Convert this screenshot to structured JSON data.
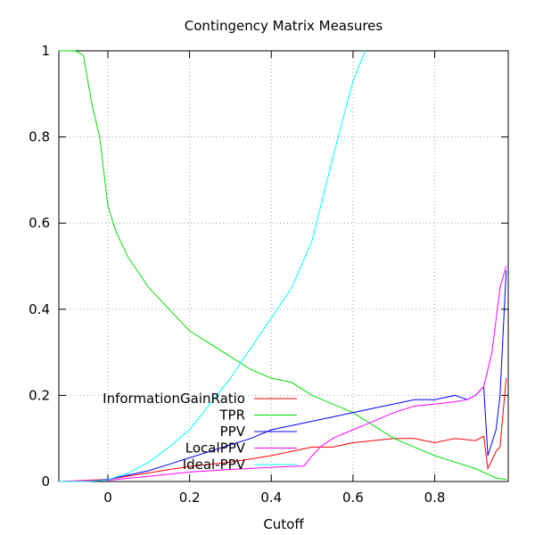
{
  "chart_data": {
    "type": "line",
    "title": "Contingency Matrix Measures",
    "xlabel": "Cutoff",
    "ylabel": "",
    "xlim": [
      -0.12,
      0.98
    ],
    "ylim": [
      0,
      1
    ],
    "grid": true,
    "legend_position": "bottom-left",
    "x_ticks": [
      0,
      0.2,
      0.4,
      0.6,
      0.8
    ],
    "x_tick_labels": [
      "0",
      "0.2",
      "0.4",
      "0.6",
      "0.8"
    ],
    "y_ticks": [
      0,
      0.2,
      0.4,
      0.6,
      0.8,
      1
    ],
    "y_tick_labels": [
      "0",
      "0.2",
      "0.4",
      "0.6",
      "0.8",
      "1"
    ],
    "series": [
      {
        "name": "InformationGainRatio",
        "color": "#ff0000",
        "x": [
          -0.12,
          0.0,
          0.1,
          0.2,
          0.3,
          0.4,
          0.5,
          0.55,
          0.6,
          0.65,
          0.7,
          0.75,
          0.8,
          0.85,
          0.9,
          0.92,
          0.93,
          0.95,
          0.96,
          0.975
        ],
        "y": [
          0.0,
          0.005,
          0.02,
          0.035,
          0.045,
          0.06,
          0.08,
          0.08,
          0.09,
          0.095,
          0.1,
          0.1,
          0.09,
          0.1,
          0.095,
          0.105,
          0.03,
          0.07,
          0.08,
          0.24
        ]
      },
      {
        "name": "TPR",
        "color": "#00dd00",
        "x": [
          -0.12,
          -0.08,
          -0.06,
          -0.04,
          -0.02,
          0.0,
          0.02,
          0.05,
          0.1,
          0.15,
          0.2,
          0.25,
          0.3,
          0.35,
          0.4,
          0.45,
          0.5,
          0.55,
          0.6,
          0.65,
          0.7,
          0.75,
          0.8,
          0.85,
          0.9,
          0.95,
          0.975
        ],
        "y": [
          1.0,
          1.0,
          0.99,
          0.88,
          0.8,
          0.64,
          0.58,
          0.52,
          0.45,
          0.4,
          0.35,
          0.32,
          0.29,
          0.26,
          0.24,
          0.23,
          0.2,
          0.18,
          0.16,
          0.13,
          0.1,
          0.08,
          0.06,
          0.045,
          0.03,
          0.008,
          0.005
        ]
      },
      {
        "name": "PPV",
        "color": "#0000ff",
        "x": [
          -0.12,
          -0.05,
          0.0,
          0.05,
          0.1,
          0.15,
          0.2,
          0.25,
          0.3,
          0.35,
          0.4,
          0.45,
          0.5,
          0.55,
          0.6,
          0.65,
          0.7,
          0.75,
          0.8,
          0.85,
          0.88,
          0.9,
          0.92,
          0.93,
          0.95,
          0.96,
          0.975
        ],
        "y": [
          0.0,
          0.0,
          0.005,
          0.015,
          0.025,
          0.04,
          0.055,
          0.07,
          0.085,
          0.1,
          0.12,
          0.13,
          0.14,
          0.15,
          0.16,
          0.17,
          0.18,
          0.19,
          0.19,
          0.2,
          0.19,
          0.2,
          0.22,
          0.06,
          0.12,
          0.2,
          0.49
        ]
      },
      {
        "name": "LocalPPV",
        "color": "#ff00ff",
        "x": [
          -0.12,
          0.0,
          0.1,
          0.2,
          0.3,
          0.4,
          0.45,
          0.48,
          0.5,
          0.52,
          0.55,
          0.6,
          0.65,
          0.7,
          0.75,
          0.8,
          0.85,
          0.88,
          0.9,
          0.92,
          0.94,
          0.96,
          0.975
        ],
        "y": [
          0.0,
          0.003,
          0.012,
          0.022,
          0.028,
          0.033,
          0.035,
          0.036,
          0.06,
          0.08,
          0.1,
          0.12,
          0.14,
          0.16,
          0.175,
          0.18,
          0.185,
          0.19,
          0.2,
          0.22,
          0.3,
          0.45,
          0.5
        ]
      },
      {
        "name": "Ideal-PPV",
        "color": "#00ffff",
        "x": [
          -0.12,
          -0.05,
          0.0,
          0.05,
          0.1,
          0.15,
          0.2,
          0.25,
          0.3,
          0.35,
          0.4,
          0.45,
          0.5,
          0.55,
          0.6,
          0.63
        ],
        "y": [
          0.0,
          0.0,
          0.004,
          0.02,
          0.045,
          0.08,
          0.12,
          0.18,
          0.24,
          0.31,
          0.38,
          0.45,
          0.56,
          0.75,
          0.93,
          1.0
        ]
      }
    ]
  }
}
